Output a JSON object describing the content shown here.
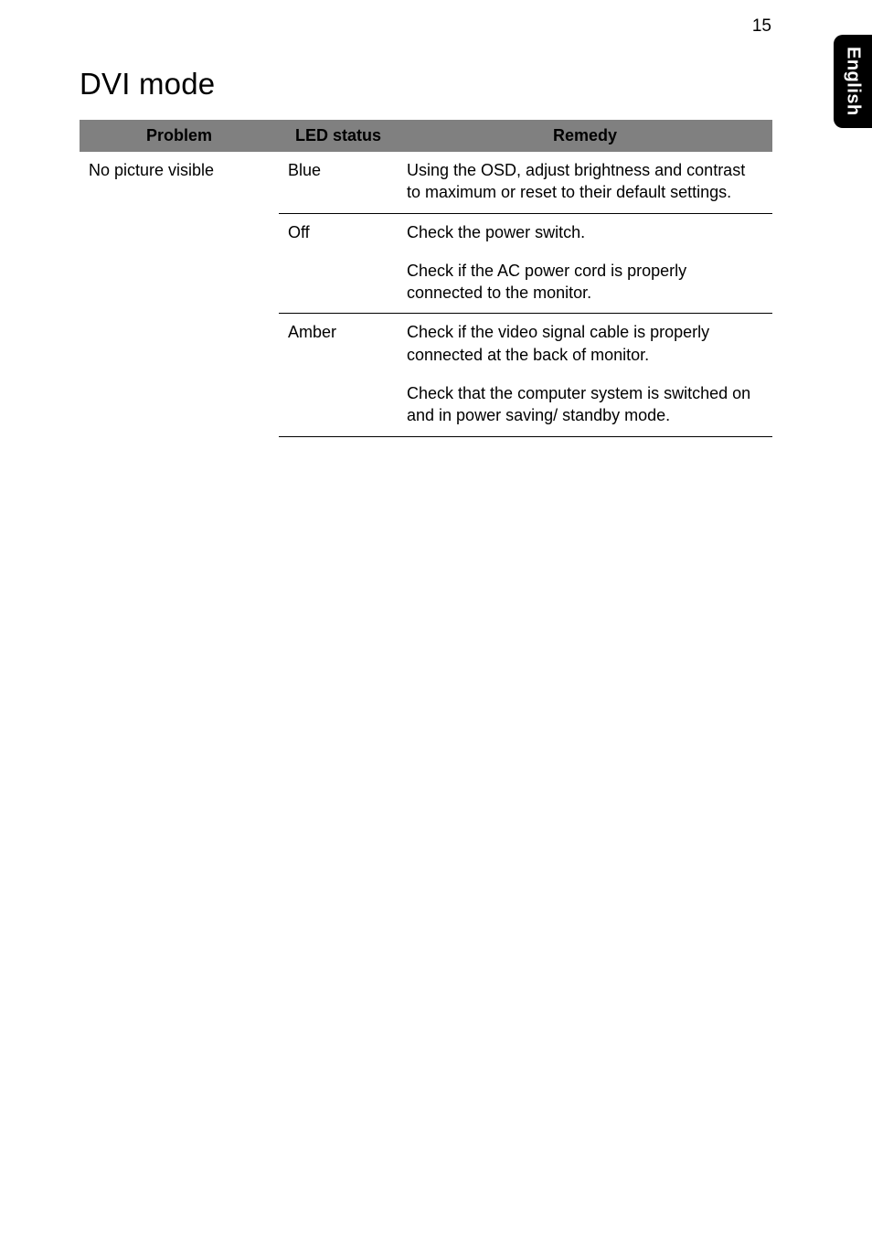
{
  "page_number": "15",
  "side_tab": "English",
  "heading": "DVI mode",
  "table": {
    "columns": [
      "Problem",
      "LED status",
      "Remedy"
    ],
    "rows": [
      {
        "problem": "No picture visible",
        "led": "Blue",
        "remedy": [
          "Using the OSD, adjust brightness and contrast to maximum or reset to their default settings."
        ]
      },
      {
        "problem": "",
        "led": "Off",
        "remedy": [
          "Check the power switch.",
          "Check if the AC power cord is properly connected to the monitor."
        ]
      },
      {
        "problem": "",
        "led": "Amber",
        "remedy": [
          "Check if the video signal cable is properly connected at the back of monitor.",
          "Check that the computer system is switched on and in power saving/ standby mode."
        ]
      }
    ]
  },
  "colors": {
    "header_bg": "#808080",
    "side_tab_bg": "#000000",
    "side_tab_text": "#ffffff",
    "body_text": "#000000",
    "page_bg": "#ffffff",
    "rule": "#000000"
  },
  "typography": {
    "heading_fontsize_pt": 25,
    "body_fontsize_pt": 13.5,
    "header_fontweight": "700"
  }
}
